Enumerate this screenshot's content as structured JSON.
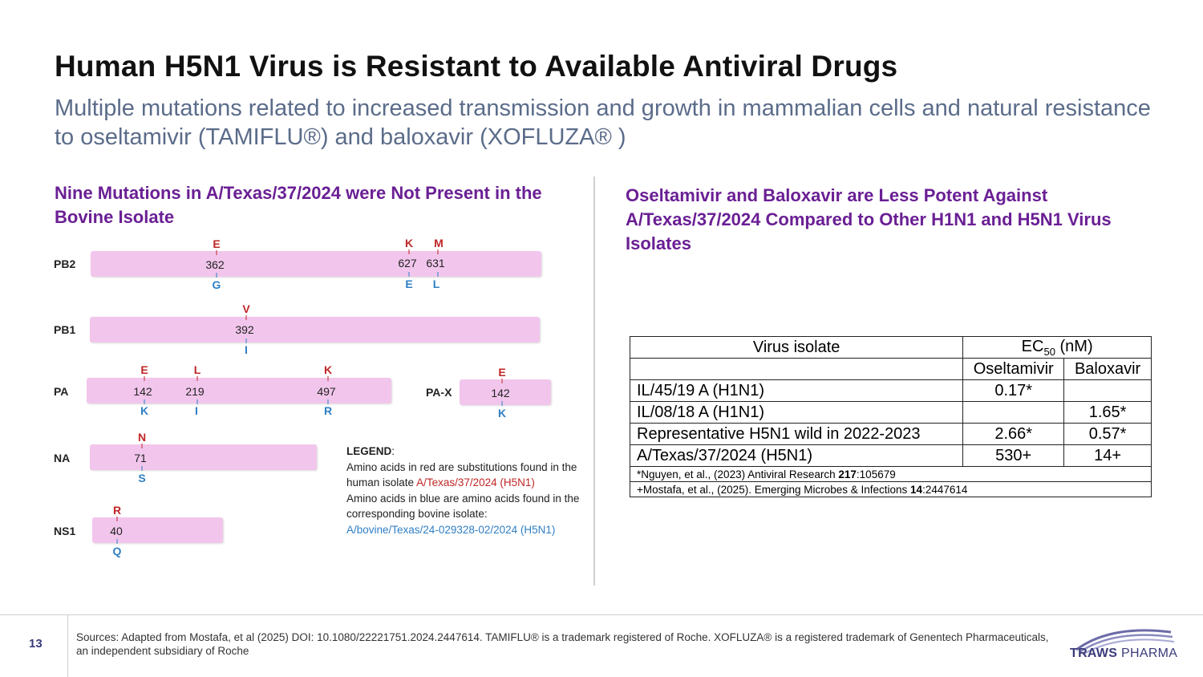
{
  "title": "Human H5N1 Virus is Resistant to Available Antiviral Drugs",
  "subtitle": "Multiple mutations related to increased transmission and growth in mammalian cells and natural resistance to oseltamivir (TAMIFLU®) and baloxavir (XOFLUZA® )",
  "left_heading": "Nine Mutations in A/Texas/37/2024 were Not Present in the Bovine Isolate",
  "right_heading": "Oseltamivir and Baloxavir are Less Potent Against A/Texas/37/2024 Compared to Other H1N1 and H5N1 Virus Isolates",
  "segments": {
    "pb2": {
      "label": "PB2",
      "mutations": [
        {
          "pos": "362",
          "human": "E",
          "bovine": "G"
        },
        {
          "pos": "627",
          "human": "K",
          "bovine": "E"
        },
        {
          "pos": "631",
          "human": "M",
          "bovine": "L"
        }
      ]
    },
    "pb1": {
      "label": "PB1",
      "mutations": [
        {
          "pos": "392",
          "human": "V",
          "bovine": "I"
        }
      ]
    },
    "pa": {
      "label": "PA",
      "mutations": [
        {
          "pos": "142",
          "human": "E",
          "bovine": "K"
        },
        {
          "pos": "219",
          "human": "L",
          "bovine": "I"
        },
        {
          "pos": "497",
          "human": "K",
          "bovine": "R"
        }
      ]
    },
    "pax": {
      "label": "PA-X",
      "mutations": [
        {
          "pos": "142",
          "human": "E",
          "bovine": "K"
        }
      ]
    },
    "na": {
      "label": "NA",
      "mutations": [
        {
          "pos": "71",
          "human": "N",
          "bovine": "S"
        }
      ]
    },
    "ns1": {
      "label": "NS1",
      "mutations": [
        {
          "pos": "40",
          "human": "R",
          "bovine": "Q"
        }
      ]
    }
  },
  "legend": {
    "title": "LEGEND",
    "colon": ":",
    "red_text_prefix": "Amino acids in red are substitutions found in the human isolate ",
    "red_isolate": "A/Texas/37/2024 (H5N1)",
    "blue_text": "Amino acids in blue are amino acids found in the corresponding bovine isolate:",
    "blue_isolate": "A/bovine/Texas/24-029328-02/2024 (H5N1)"
  },
  "table": {
    "header_isolate": "Virus isolate",
    "header_ec50_prefix": "EC",
    "header_ec50_sub": "50",
    "header_ec50_suffix": " (nM)",
    "sub_oseltamivir": "Oseltamivir",
    "sub_baloxavir": "Baloxavir",
    "rows": [
      {
        "isolate": "IL/45/19 A (H1N1)",
        "oseltamivir": "0.17*",
        "baloxavir": ""
      },
      {
        "isolate": "IL/08/18 A (H1N1)",
        "oseltamivir": "",
        "baloxavir": "1.65*"
      },
      {
        "isolate": "Representative H5N1 wild in 2022-2023",
        "oseltamivir": "2.66*",
        "baloxavir": "0.57*"
      },
      {
        "isolate": "A/Texas/37/2024 (H5N1)",
        "oseltamivir": "530+",
        "baloxavir": "14+"
      }
    ],
    "ref1_prefix": "*Nguyen, et al., (2023) Antiviral Research ",
    "ref1_bold": "217",
    "ref1_suffix": ":105679",
    "ref2_prefix": "+Mostafa, et al., (2025). Emerging Microbes & Infections ",
    "ref2_bold": "14",
    "ref2_suffix": ":2447614"
  },
  "footer": {
    "page_number": "13",
    "sources": "Sources: Adapted from Mostafa, et al (2025) DOI: 10.1080/22221751.2024.2447614. TAMIFLU® is a trademark registered of Roche. XOFLUZA® is a  registered trademark of Genentech Pharmaceuticals, an independent subsidiary of Roche",
    "logo_bold": "TRAWS",
    "logo_light": " PHARMA"
  },
  "colors": {
    "heading_purple": "#6a1f94",
    "human_red": "#c02626",
    "bovine_blue": "#2f7fc4",
    "segment_pink": "#f2c6ec"
  }
}
